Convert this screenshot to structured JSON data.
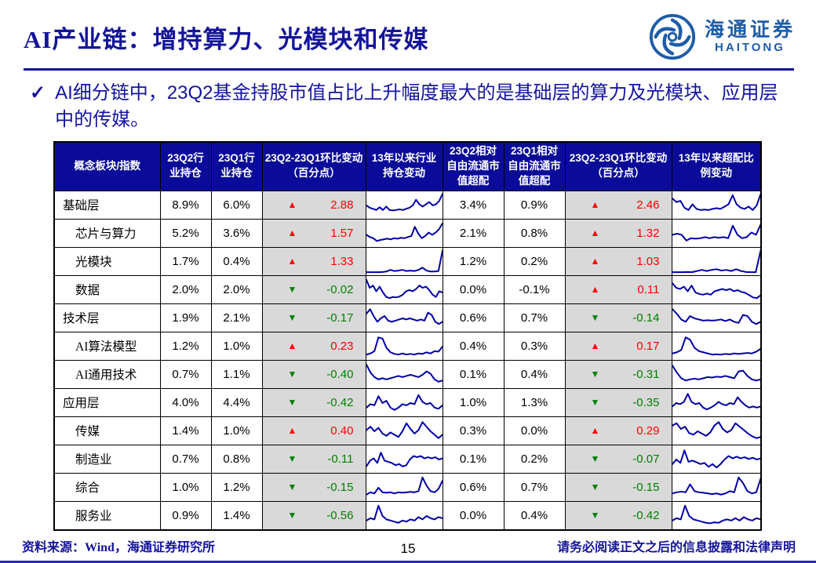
{
  "title": "AI产业链：增持算力、光模块和传媒",
  "logo": {
    "cn": "海通证券",
    "en": "HAITONG"
  },
  "bullet": {
    "check": "✓",
    "text": "AI细分链中，23Q2基金持股市值占比上升幅度最大的是基础层的算力及光模块、应用层中的传媒。"
  },
  "icons": {
    "up": "▲",
    "down": "▼"
  },
  "colors": {
    "navy_text": "#14149b",
    "header_bg": "#0b0b99",
    "up_red": "#ff0000",
    "down_green": "#008000",
    "change_cell_gray": "#d9d9d9",
    "sparkline": "#0000a6",
    "logo_blue": "#1e5ca8",
    "bottom_bar": "#2a2ab0"
  },
  "table": {
    "headers": [
      "概念板块/指数",
      "23Q2行业持仓",
      "23Q1行业持仓",
      "23Q2-23Q1环比变动（百分点）",
      "13年以来行业持仓变动",
      "23Q2相对自由流通市值超配",
      "23Q1相对自由流通市值超配",
      "23Q2-23Q1环比变动（百分点）",
      "13年以来超配比例变动"
    ],
    "rows": [
      {
        "label": "基础层",
        "indent": false,
        "q2_hold": "8.9%",
        "q1_hold": "6.0%",
        "hold_chg": "2.88",
        "q2_over": "3.4%",
        "q1_over": "0.9%",
        "over_chg": "2.46",
        "spark_hold": [
          0.5,
          0.4,
          0.35,
          0.3,
          0.42,
          0.3,
          0.45,
          0.3,
          0.28,
          0.3,
          0.33,
          0.3,
          0.35,
          0.4,
          0.5,
          0.75,
          0.55,
          0.45,
          0.55,
          0.65,
          0.5,
          0.55,
          0.7,
          1.0
        ],
        "spark_over": [
          0.8,
          0.65,
          0.7,
          0.4,
          0.3,
          0.55,
          0.35,
          0.3,
          0.32,
          0.3,
          0.35,
          0.38,
          0.35,
          0.45,
          0.55,
          0.95,
          0.55,
          0.4,
          0.35,
          0.45,
          0.3,
          0.5,
          1.0
        ]
      },
      {
        "label": "芯片与算力",
        "indent": true,
        "q2_hold": "5.2%",
        "q1_hold": "3.6%",
        "hold_chg": "1.57",
        "q2_over": "2.1%",
        "q1_over": "0.8%",
        "over_chg": "1.32",
        "spark_hold": [
          0.45,
          0.35,
          0.3,
          0.18,
          0.22,
          0.25,
          0.28,
          0.25,
          0.3,
          0.28,
          0.32,
          0.3,
          0.35,
          0.4,
          0.8,
          0.5,
          0.3,
          0.4,
          0.55,
          0.45,
          0.55,
          0.7,
          0.95
        ],
        "spark_over": [
          0.45,
          0.5,
          0.45,
          0.2,
          0.3,
          0.28,
          0.3,
          0.35,
          0.3,
          0.35,
          0.32,
          0.35,
          0.3,
          0.85,
          0.45,
          0.3,
          0.35,
          0.55,
          0.45,
          0.9
        ]
      },
      {
        "label": "光模块",
        "indent": true,
        "q2_hold": "1.7%",
        "q1_hold": "0.4%",
        "hold_chg": "1.33",
        "q2_over": "1.2%",
        "q1_over": "0.2%",
        "over_chg": "1.03",
        "spark_hold": [
          0.05,
          0.05,
          0.05,
          0.05,
          0.06,
          0.08,
          0.15,
          0.1,
          0.12,
          0.15,
          0.1,
          0.12,
          0.1,
          0.15,
          0.25,
          0.12,
          0.08,
          0.08,
          0.1,
          1.0
        ],
        "spark_over": [
          0.05,
          0.05,
          0.05,
          0.06,
          0.05,
          0.1,
          0.15,
          0.1,
          0.15,
          0.18,
          0.12,
          0.15,
          0.1,
          0.18,
          0.1,
          0.06,
          0.05,
          0.05,
          1.0
        ]
      },
      {
        "label": "数据",
        "indent": true,
        "q2_hold": "2.0%",
        "q1_hold": "2.0%",
        "hold_chg": "-0.02",
        "q2_over": "0.0%",
        "q1_over": "-0.1%",
        "over_chg": "0.11",
        "spark_hold": [
          0.95,
          0.6,
          0.7,
          0.45,
          0.65,
          0.4,
          0.2,
          0.15,
          0.2,
          0.18,
          0.22,
          0.3,
          0.45,
          0.5,
          0.45,
          0.55,
          0.7,
          0.6,
          0.65,
          0.5,
          0.3,
          0.2,
          0.45,
          0.4
        ],
        "spark_over": [
          0.8,
          0.6,
          0.55,
          0.65,
          0.45,
          0.7,
          0.4,
          0.33,
          0.3,
          0.35,
          0.3,
          0.45,
          0.5,
          0.55,
          0.5,
          0.55,
          0.45,
          0.5,
          0.42,
          0.38,
          0.28,
          0.18,
          0.15,
          0.28
        ]
      },
      {
        "label": "技术层",
        "indent": false,
        "q2_hold": "1.9%",
        "q1_hold": "2.1%",
        "hold_chg": "-0.17",
        "q2_over": "0.6%",
        "q1_over": "0.7%",
        "over_chg": "-0.14",
        "spark_hold": [
          0.7,
          0.9,
          0.6,
          0.35,
          0.5,
          0.6,
          0.4,
          0.35,
          0.4,
          0.45,
          0.5,
          0.45,
          0.5,
          0.45,
          0.4,
          0.45,
          0.4,
          0.75,
          0.65,
          0.35,
          0.25,
          0.35
        ],
        "spark_over": [
          0.9,
          0.7,
          0.45,
          0.35,
          0.6,
          0.5,
          0.45,
          0.4,
          0.42,
          0.4,
          0.42,
          0.45,
          0.38,
          0.45,
          0.35,
          0.3,
          0.65,
          0.6,
          0.35,
          0.25,
          0.35
        ]
      },
      {
        "label": "AI算法模型",
        "indent": true,
        "q2_hold": "1.2%",
        "q1_hold": "1.0%",
        "hold_chg": "0.23",
        "q2_over": "0.4%",
        "q1_over": "0.3%",
        "over_chg": "0.17",
        "spark_hold": [
          0.15,
          0.2,
          0.3,
          0.9,
          0.85,
          0.45,
          0.25,
          0.18,
          0.15,
          0.2,
          0.15,
          0.18,
          0.15,
          0.2,
          0.18,
          0.25,
          0.2,
          0.3,
          0.28,
          0.5
        ],
        "spark_over": [
          0.2,
          0.25,
          0.35,
          0.9,
          0.8,
          0.45,
          0.3,
          0.25,
          0.2,
          0.15,
          0.16,
          0.15,
          0.18,
          0.16,
          0.2,
          0.18,
          0.2,
          0.22,
          0.2,
          0.28,
          0.4
        ]
      },
      {
        "label": "AI通用技术",
        "indent": true,
        "q2_hold": "0.7%",
        "q1_hold": "1.1%",
        "hold_chg": "-0.40",
        "q2_over": "0.1%",
        "q1_over": "0.4%",
        "over_chg": "-0.31",
        "spark_hold": [
          0.95,
          0.6,
          0.4,
          0.3,
          0.35,
          0.3,
          0.35,
          0.4,
          0.45,
          0.4,
          0.45,
          0.5,
          0.45,
          0.4,
          0.5,
          0.65,
          0.55,
          0.3,
          0.2,
          0.25
        ],
        "spark_over": [
          0.9,
          0.6,
          0.35,
          0.25,
          0.3,
          0.33,
          0.3,
          0.35,
          0.4,
          0.38,
          0.42,
          0.4,
          0.45,
          0.4,
          0.35,
          0.65,
          0.68,
          0.45,
          0.3,
          0.25,
          0.3
        ]
      },
      {
        "label": "应用层",
        "indent": false,
        "q2_hold": "4.0%",
        "q1_hold": "4.4%",
        "hold_chg": "-0.42",
        "q2_over": "1.0%",
        "q1_over": "1.3%",
        "over_chg": "-0.35",
        "spark_hold": [
          0.3,
          0.45,
          0.4,
          0.8,
          0.5,
          0.6,
          0.3,
          0.2,
          0.3,
          0.45,
          0.4,
          0.5,
          0.45,
          0.85,
          0.55,
          0.45,
          0.5,
          0.3,
          0.25,
          0.4
        ],
        "spark_over": [
          0.35,
          0.5,
          0.45,
          0.55,
          0.9,
          0.55,
          0.45,
          0.5,
          0.3,
          0.22,
          0.3,
          0.4,
          0.55,
          0.45,
          0.4,
          0.5,
          0.45,
          0.75,
          0.55,
          0.4,
          0.3,
          0.35,
          0.3,
          0.35
        ]
      },
      {
        "label": "传媒",
        "indent": true,
        "q2_hold": "1.4%",
        "q1_hold": "1.0%",
        "hold_chg": "0.40",
        "q2_over": "0.3%",
        "q1_over": "0.0%",
        "over_chg": "0.29",
        "spark_hold": [
          0.55,
          0.7,
          0.5,
          0.65,
          0.4,
          0.3,
          0.45,
          0.35,
          0.25,
          0.5,
          0.85,
          0.6,
          0.4,
          0.55,
          0.9,
          0.7,
          0.5,
          0.35,
          0.2,
          0.35
        ],
        "spark_over": [
          0.75,
          0.85,
          0.6,
          0.7,
          0.42,
          0.35,
          0.5,
          0.4,
          0.3,
          0.45,
          0.75,
          0.9,
          0.6,
          0.45,
          0.55,
          0.85,
          0.7,
          0.55,
          0.4,
          0.28,
          0.2,
          0.25
        ]
      },
      {
        "label": "制造业",
        "indent": true,
        "q2_hold": "0.7%",
        "q1_hold": "0.8%",
        "hold_chg": "-0.11",
        "q2_over": "0.1%",
        "q1_over": "0.2%",
        "over_chg": "-0.07",
        "spark_hold": [
          0.2,
          0.45,
          0.55,
          0.35,
          0.8,
          0.45,
          0.4,
          0.35,
          0.25,
          0.3,
          0.2,
          0.25,
          0.5,
          0.65,
          0.6,
          0.65,
          0.55,
          0.6,
          0.55,
          0.6,
          0.5,
          0.55
        ],
        "spark_over": [
          0.3,
          0.5,
          0.35,
          0.9,
          0.4,
          0.45,
          0.38,
          0.3,
          0.35,
          0.18,
          0.3,
          0.15,
          0.3,
          0.5,
          0.65,
          0.55,
          0.62,
          0.55,
          0.6,
          0.52,
          0.58,
          0.5,
          0.55
        ]
      },
      {
        "label": "综合",
        "indent": true,
        "q2_hold": "1.0%",
        "q1_hold": "1.2%",
        "hold_chg": "-0.15",
        "q2_over": "0.6%",
        "q1_over": "0.7%",
        "over_chg": "-0.15",
        "spark_hold": [
          0.2,
          0.3,
          0.25,
          0.5,
          0.3,
          0.28,
          0.3,
          0.25,
          0.3,
          0.28,
          0.3,
          0.32,
          0.3,
          0.35,
          0.95,
          0.6,
          0.35,
          0.3,
          0.45,
          0.8
        ],
        "spark_over": [
          0.25,
          0.3,
          0.33,
          0.3,
          0.65,
          0.35,
          0.3,
          0.28,
          0.25,
          0.22,
          0.25,
          0.2,
          0.25,
          0.35,
          0.3,
          0.95,
          0.7,
          0.35,
          0.25,
          0.3,
          0.9
        ]
      },
      {
        "label": "服务业",
        "indent": true,
        "q2_hold": "0.9%",
        "q1_hold": "1.4%",
        "hold_chg": "-0.56",
        "q2_over": "0.0%",
        "q1_over": "0.4%",
        "over_chg": "-0.42",
        "spark_hold": [
          0.3,
          0.4,
          0.35,
          0.95,
          0.5,
          0.35,
          0.3,
          0.25,
          0.2,
          0.3,
          0.25,
          0.35,
          0.3,
          0.45,
          0.35,
          0.5,
          0.4,
          0.35,
          0.45,
          0.4
        ],
        "spark_over": [
          0.3,
          0.4,
          0.35,
          0.95,
          0.5,
          0.35,
          0.3,
          0.25,
          0.2,
          0.18,
          0.22,
          0.2,
          0.3,
          0.35,
          0.3,
          0.4,
          0.3,
          0.45,
          0.35,
          0.3,
          0.4,
          0.35
        ]
      }
    ]
  },
  "footer": {
    "source": "资料来源：Wind，海通证券研究所",
    "page": "15",
    "disclaimer": "请务必阅读正文之后的信息披露和法律声明"
  }
}
